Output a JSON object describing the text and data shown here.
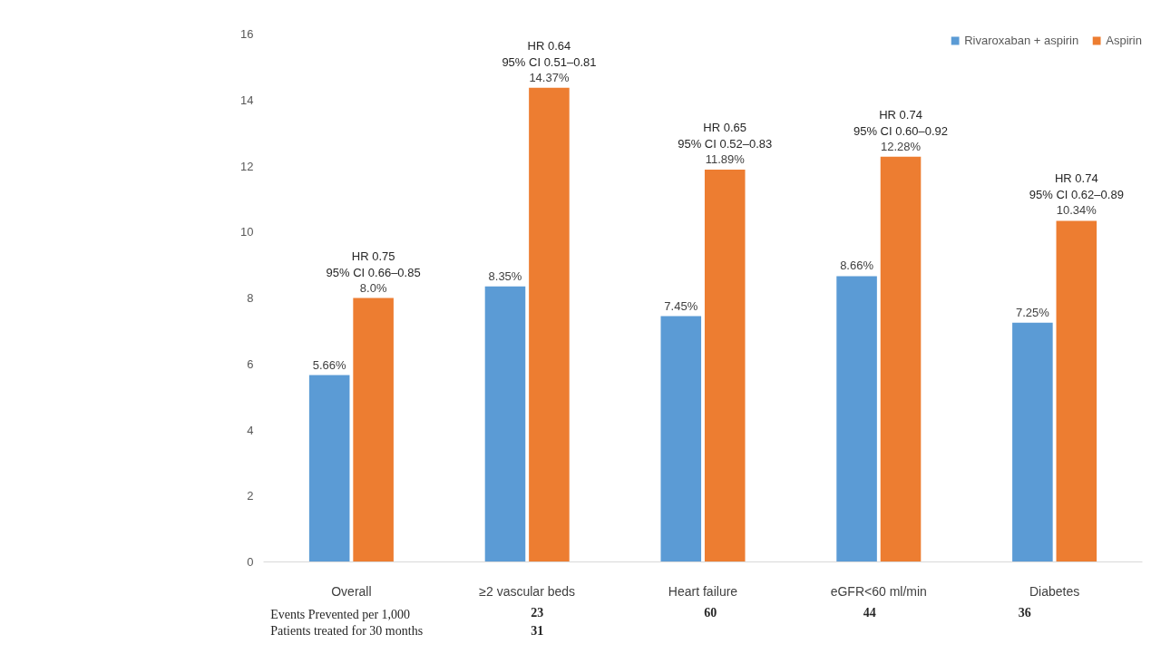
{
  "chart_data": {
    "type": "bar",
    "categories": [
      "Overall",
      "≥2 vascular beds",
      "Heart failure",
      "eGFR<60 ml/min",
      "Diabetes"
    ],
    "series": [
      {
        "name": "Rivaroxaban + aspirin",
        "color": "#5b9bd5",
        "values": [
          5.66,
          8.35,
          7.45,
          8.66,
          7.25
        ],
        "value_labels": [
          "5.66%",
          "8.35%",
          "7.45%",
          "8.66%",
          "7.25%"
        ]
      },
      {
        "name": "Aspirin",
        "color": "#ed7d31",
        "values": [
          8.0,
          14.37,
          11.89,
          12.28,
          10.34
        ],
        "value_labels": [
          "8.0%",
          "14.37%",
          "11.89%",
          "12.28%",
          "10.34%"
        ]
      }
    ],
    "ylim": [
      0,
      16
    ],
    "yticks": [
      0,
      2,
      4,
      6,
      8,
      10,
      12,
      14,
      16
    ],
    "grid": false,
    "legend": "top right",
    "annotations": [
      {
        "text": "HR 0.75\n95% CI 0.66–0.85",
        "x": "Overall",
        "y": 8.0
      },
      {
        "text": "HR 0.64\n95% CI 0.51–0.81",
        "x": "≥2 vascular beds",
        "y": 14.37
      },
      {
        "text": "HR 0.65\n95% CI 0.52–0.83",
        "x": "Heart failure",
        "y": 11.89
      },
      {
        "text": "HR 0.74\n95% CI 0.60–0.92",
        "x": "eGFR<60 ml/min",
        "y": 12.28
      },
      {
        "text": "HR 0.74\n95% CI 0.62–0.89",
        "x": "Diabetes",
        "y": 10.34
      },
      "Events Prevented per 1,000\nPatients treated for 30 months",
      "23",
      "60",
      "44",
      "36",
      "31"
    ]
  }
}
